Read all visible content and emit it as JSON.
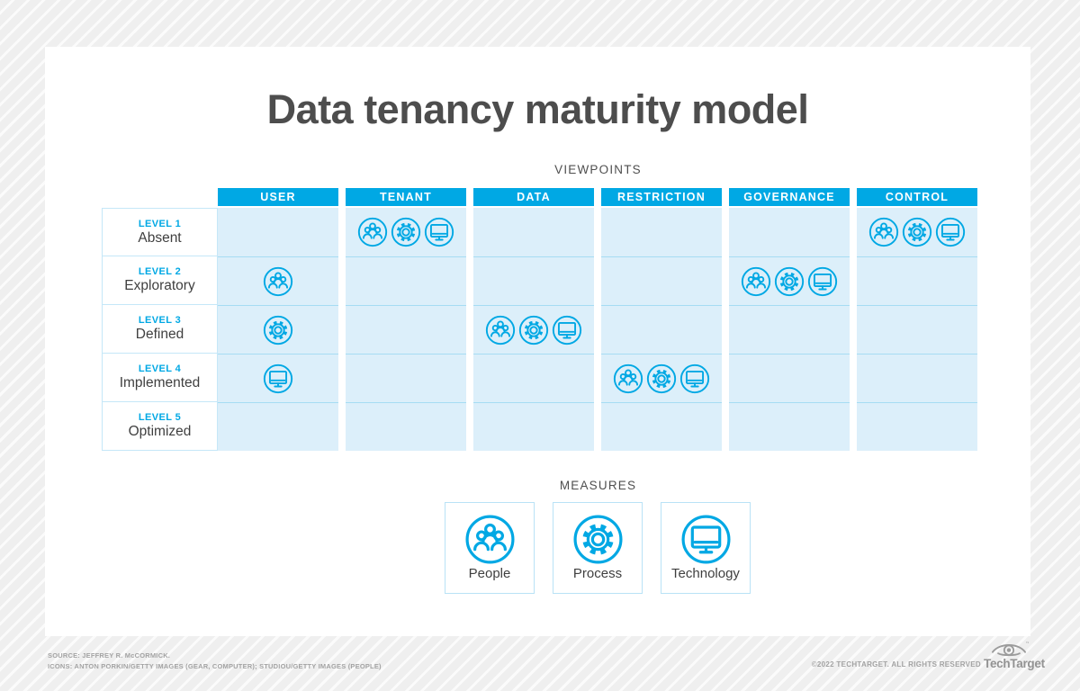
{
  "title": "Data tenancy maturity model",
  "viewpoints_label": "VIEWPOINTS",
  "measures_label": "MEASURES",
  "colors": {
    "accent": "#00a8e4",
    "cell_bg": "#dceffa",
    "row_line": "#a6dcf3",
    "label_border": "#c5e7f8",
    "ink": "#4d4d4d",
    "text": "#3f3f3f",
    "section_label": "#4f4f4f",
    "footer_text": "#a3a3a3",
    "logo_gray": "#939393",
    "header_text": "#ffffff"
  },
  "grid": {
    "columns": [
      "USER",
      "TENANT",
      "DATA",
      "RESTRICTION",
      "GOVERNANCE",
      "CONTROL"
    ],
    "rows": [
      {
        "level": "LEVEL 1",
        "name": "Absent",
        "cells": [
          [],
          [
            "people",
            "gear",
            "monitor"
          ],
          [],
          [],
          [],
          [
            "people",
            "gear",
            "monitor"
          ]
        ]
      },
      {
        "level": "LEVEL 2",
        "name": "Exploratory",
        "cells": [
          [
            "people"
          ],
          [],
          [],
          [],
          [
            "people",
            "gear",
            "monitor"
          ],
          []
        ]
      },
      {
        "level": "LEVEL 3",
        "name": "Defined",
        "cells": [
          [
            "gear"
          ],
          [],
          [
            "people",
            "gear",
            "monitor"
          ],
          [],
          [],
          []
        ]
      },
      {
        "level": "LEVEL 4",
        "name": "Implemented",
        "cells": [
          [
            "monitor"
          ],
          [],
          [],
          [
            "people",
            "gear",
            "monitor"
          ],
          [],
          []
        ]
      },
      {
        "level": "LEVEL 5",
        "name": "Optimized",
        "cells": [
          [],
          [],
          [],
          [],
          [],
          []
        ]
      }
    ]
  },
  "measures": [
    {
      "icon": "people",
      "label": "People"
    },
    {
      "icon": "gear",
      "label": "Process"
    },
    {
      "icon": "monitor",
      "label": "Technology"
    }
  ],
  "footer": {
    "source_line1": "SOURCE: JEFFREY R. McCORMICK.",
    "source_line2": "ICONS: ANTON PORKIN/GETTY IMAGES (GEAR, COMPUTER); STUDIOU/GETTY IMAGES (PEOPLE)",
    "copyright": "©2022 TECHTARGET. ALL RIGHTS RESERVED",
    "brand": "TechTarget"
  }
}
